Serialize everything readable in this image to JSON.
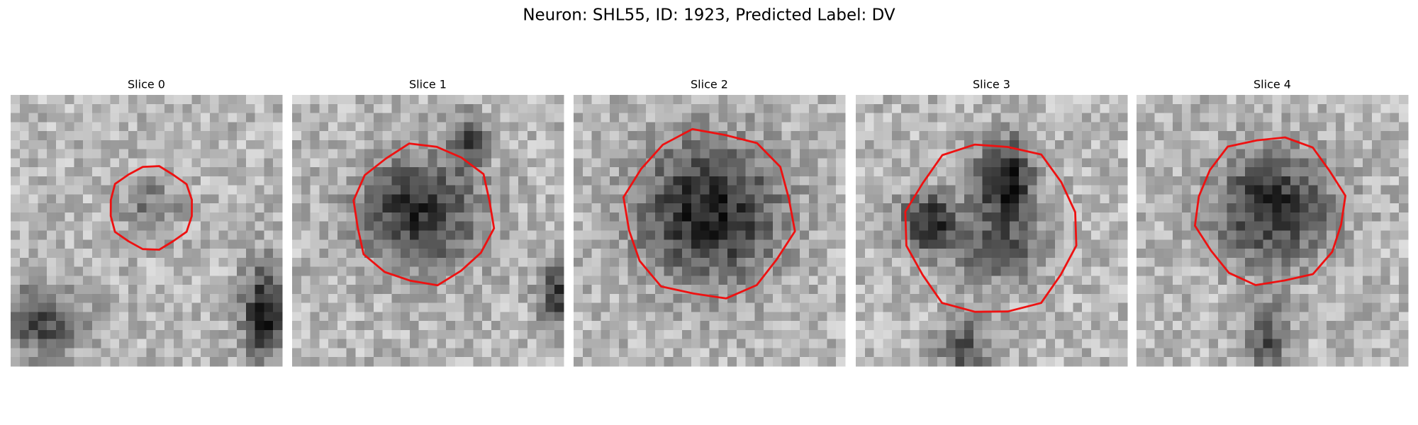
{
  "figure": {
    "title": "Neuron: SHL55, ID: 1923, Predicted Label: DV",
    "panels": [
      {
        "title": "Slice 0"
      },
      {
        "title": "Slice 1"
      },
      {
        "title": "Slice 2"
      },
      {
        "title": "Slice 3"
      },
      {
        "title": "Slice 4"
      }
    ]
  }
}
